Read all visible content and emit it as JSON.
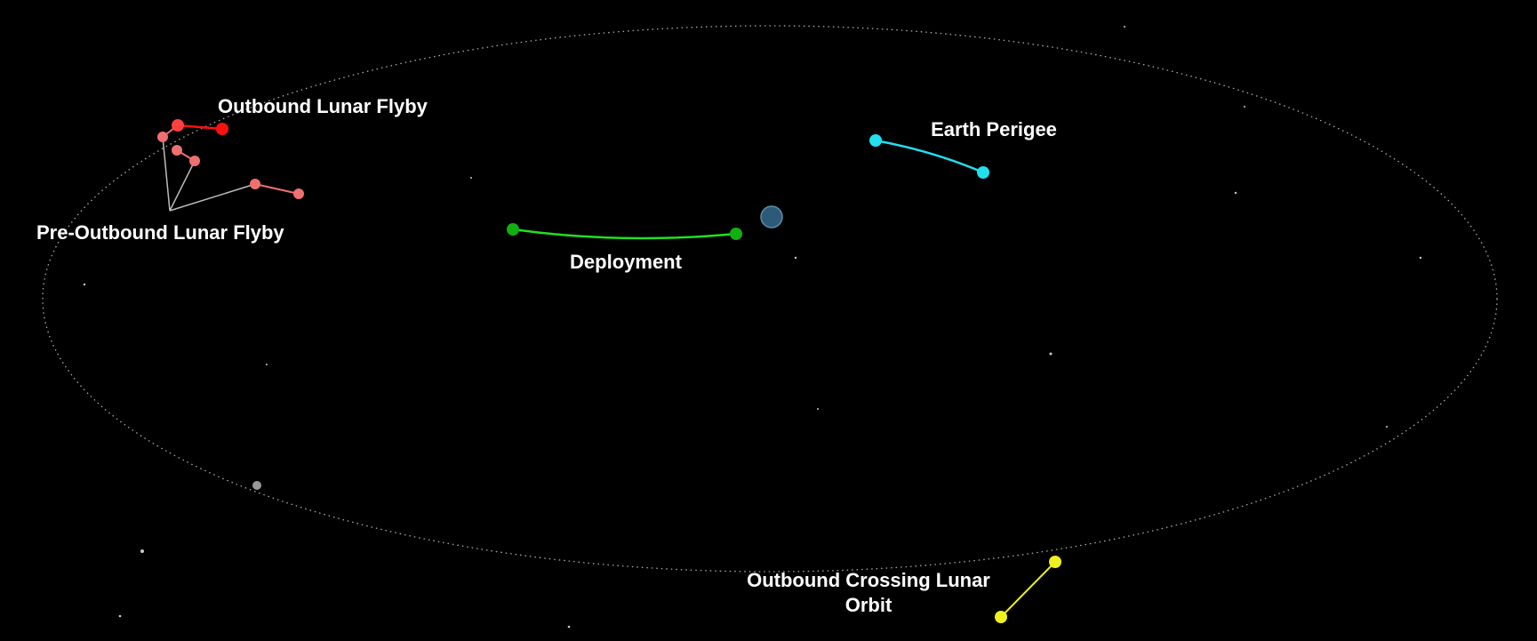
{
  "labels": {
    "outbound_lunar_flyby": "Outbound Lunar Flyby",
    "pre_outbound_lunar_flyby": "Pre-Outbound Lunar Flyby",
    "earth_perigee": "Earth Perigee",
    "deployment": "Deployment",
    "outbound_crossing": [
      "Outbound Crossing Lunar",
      "Orbit"
    ]
  }
}
